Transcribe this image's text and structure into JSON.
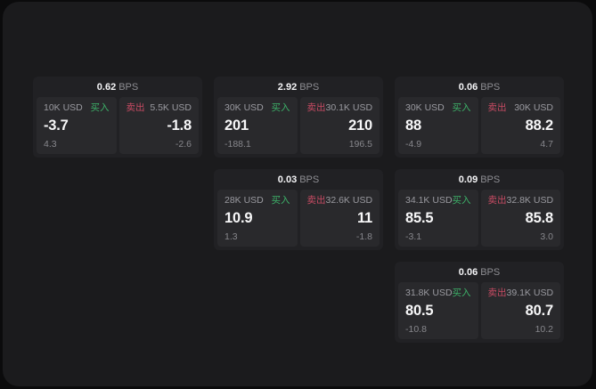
{
  "colors": {
    "background": "#0b0b0c",
    "page": "#1b1b1d",
    "card": "#212124",
    "panel": "#29292c",
    "buy_green": "#3db269",
    "sell_red": "#c84b63",
    "primary_text": "#f7f7f8",
    "muted_text": "#9a9aa0"
  },
  "labels": {
    "bps_unit": "BPS",
    "buy": "买入",
    "sell": "卖出"
  },
  "cards": [
    {
      "row": 1,
      "col": 1,
      "bps_value": "0.62",
      "buy": {
        "amount": "10K USD",
        "side_label": "买入",
        "value": "-3.7",
        "secondary": "4.3"
      },
      "sell": {
        "side_label": "卖出",
        "amount": "5.5K USD",
        "value": "-1.8",
        "secondary": "-2.6"
      }
    },
    {
      "row": 1,
      "col": 2,
      "bps_value": "2.92",
      "buy": {
        "amount": "30K USD",
        "side_label": "买入",
        "value": "201",
        "secondary": "-188.1"
      },
      "sell": {
        "side_label": "卖出",
        "amount": "30.1K USD",
        "value": "210",
        "secondary": "196.5"
      }
    },
    {
      "row": 1,
      "col": 3,
      "bps_value": "0.06",
      "buy": {
        "amount": "30K USD",
        "side_label": "买入",
        "value": "88",
        "secondary": "-4.9"
      },
      "sell": {
        "side_label": "卖出",
        "amount": "30K USD",
        "value": "88.2",
        "secondary": "4.7"
      }
    },
    {
      "row": 2,
      "col": 2,
      "bps_value": "0.03",
      "buy": {
        "amount": "28K USD",
        "side_label": "买入",
        "value": "10.9",
        "secondary": "1.3"
      },
      "sell": {
        "side_label": "卖出",
        "amount": "32.6K USD",
        "value": "11",
        "secondary": "-1.8"
      }
    },
    {
      "row": 2,
      "col": 3,
      "bps_value": "0.09",
      "buy": {
        "amount": "34.1K USD",
        "side_label": "买入",
        "value": "85.5",
        "secondary": "-3.1"
      },
      "sell": {
        "side_label": "卖出",
        "amount": "32.8K USD",
        "value": "85.8",
        "secondary": "3.0"
      }
    },
    {
      "row": 3,
      "col": 3,
      "bps_value": "0.06",
      "buy": {
        "amount": "31.8K USD",
        "side_label": "买入",
        "value": "80.5",
        "secondary": "-10.8"
      },
      "sell": {
        "side_label": "卖出",
        "amount": "39.1K USD",
        "value": "80.7",
        "secondary": "10.2"
      }
    }
  ]
}
